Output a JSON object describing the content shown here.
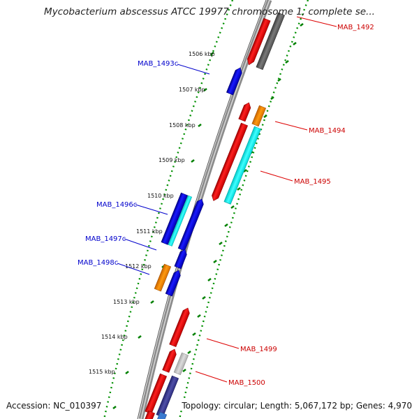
{
  "title": "Mycobacterium abscessus ATCC 19977 chromosome 1, complete se...",
  "accession": "Accession: NC_010397",
  "summary": "Topology: circular; Length: 5,067,172 bp; Genes: 4,970",
  "colors": {
    "forward_gene": "#ff0000",
    "reverse_gene": "#0000ee",
    "orange_feature": "#ff8c00",
    "cyan_feature": "#00ffff",
    "gray_feature": "#666666",
    "light_gray_feature": "#c8c8c8",
    "navy_feature": "#3c3c96",
    "backbone": "#8c8c8c",
    "tick": "#008000",
    "forward_label": "#cc0000",
    "reverse_label": "#0000cc"
  },
  "tick_labels": [
    "1506 kbp",
    "1507 kbp",
    "1508 kbp",
    "1509 kbp",
    "1510 kbp",
    "1511 kbp",
    "1512 kbp",
    "1513 kbp",
    "1514 kbp",
    "1515 kbp"
  ],
  "gene_labels": {
    "forward": [
      "MAB_1492",
      "MAB_1494",
      "MAB_1495",
      "MAB_1499",
      "MAB_1500"
    ],
    "reverse": [
      "MAB_1493c",
      "MAB_1496c",
      "MAB_1497c",
      "MAB_1498c"
    ]
  }
}
